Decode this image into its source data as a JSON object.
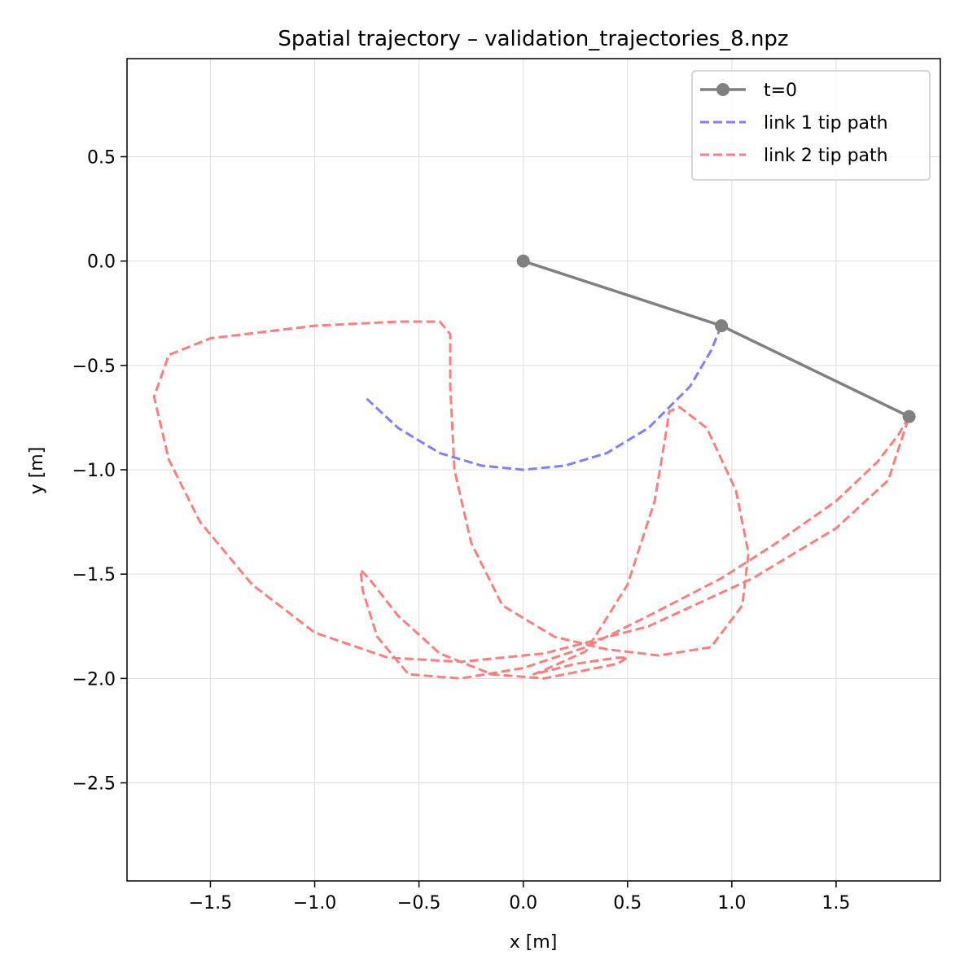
{
  "chart_data": {
    "type": "line",
    "title": "Spatial trajectory – validation_trajectories_8.npz",
    "xlabel": "x [m]",
    "ylabel": "y [m]",
    "xlim": [
      -1.9,
      2.0
    ],
    "ylim": [
      -2.97,
      0.97
    ],
    "xticks": [
      -1.5,
      -1.0,
      -0.5,
      0.0,
      0.5,
      1.0,
      1.5
    ],
    "xtick_labels": [
      "−1.5",
      "−1.0",
      "−0.5",
      "0.0",
      "0.5",
      "1.0",
      "1.5"
    ],
    "yticks": [
      0.5,
      0.0,
      -0.5,
      -1.0,
      -1.5,
      -2.0,
      -2.5
    ],
    "ytick_labels": [
      "0.5",
      "0.0",
      "−0.5",
      "−1.0",
      "−1.5",
      "−2.0",
      "−2.5"
    ],
    "grid": true,
    "legend_position": "top-right",
    "series": [
      {
        "name": "t=0",
        "style": "solid-markers",
        "color": "#808080",
        "points": [
          [
            0.0,
            0.0
          ],
          [
            0.95,
            -0.31
          ],
          [
            1.85,
            -0.745
          ]
        ]
      },
      {
        "name": "link 1 tip path",
        "style": "dashed",
        "color": "#7f7fff",
        "points": [
          [
            0.95,
            -0.31
          ],
          [
            0.9,
            -0.43
          ],
          [
            0.8,
            -0.6
          ],
          [
            0.6,
            -0.8
          ],
          [
            0.4,
            -0.92
          ],
          [
            0.2,
            -0.98
          ],
          [
            0.0,
            -1.0
          ],
          [
            -0.2,
            -0.98
          ],
          [
            -0.4,
            -0.92
          ],
          [
            -0.6,
            -0.8
          ],
          [
            -0.75,
            -0.66
          ]
        ]
      },
      {
        "name": "link 2 tip path",
        "style": "dashed",
        "color": "#ff7f7f",
        "points": [
          [
            1.85,
            -0.745
          ],
          [
            1.8,
            -0.83
          ],
          [
            1.7,
            -0.96
          ],
          [
            1.5,
            -1.15
          ],
          [
            1.2,
            -1.36
          ],
          [
            0.95,
            -1.52
          ],
          [
            0.6,
            -1.7
          ],
          [
            0.3,
            -1.85
          ],
          [
            0.0,
            -1.95
          ],
          [
            -0.3,
            -2.0
          ],
          [
            -0.55,
            -1.98
          ],
          [
            -0.7,
            -1.8
          ],
          [
            -0.77,
            -1.58
          ],
          [
            -0.78,
            -1.48
          ],
          [
            -0.74,
            -1.52
          ],
          [
            -0.6,
            -1.7
          ],
          [
            -0.4,
            -1.88
          ],
          [
            -0.15,
            -1.98
          ],
          [
            0.1,
            -2.0
          ],
          [
            0.3,
            -1.96
          ],
          [
            0.45,
            -1.93
          ],
          [
            0.5,
            -1.9
          ],
          [
            0.45,
            -1.9
          ],
          [
            0.25,
            -1.93
          ],
          [
            0.05,
            -1.98
          ],
          [
            0.1,
            -1.96
          ],
          [
            0.3,
            -1.87
          ],
          [
            0.5,
            -1.55
          ],
          [
            0.63,
            -1.15
          ],
          [
            0.68,
            -0.85
          ],
          [
            0.7,
            -0.72
          ],
          [
            0.75,
            -0.7
          ],
          [
            0.88,
            -0.8
          ],
          [
            1.02,
            -1.1
          ],
          [
            1.08,
            -1.4
          ],
          [
            1.05,
            -1.65
          ],
          [
            0.9,
            -1.85
          ],
          [
            0.65,
            -1.89
          ],
          [
            0.4,
            -1.86
          ],
          [
            0.15,
            -1.8
          ],
          [
            -0.1,
            -1.65
          ],
          [
            -0.25,
            -1.35
          ],
          [
            -0.33,
            -1.0
          ],
          [
            -0.35,
            -0.6
          ],
          [
            -0.35,
            -0.35
          ],
          [
            -0.4,
            -0.29
          ],
          [
            -0.6,
            -0.29
          ],
          [
            -1.0,
            -0.31
          ],
          [
            -1.5,
            -0.37
          ],
          [
            -1.7,
            -0.45
          ],
          [
            -1.77,
            -0.65
          ],
          [
            -1.7,
            -0.95
          ],
          [
            -1.55,
            -1.25
          ],
          [
            -1.3,
            -1.55
          ],
          [
            -1.0,
            -1.78
          ],
          [
            -0.65,
            -1.9
          ],
          [
            -0.3,
            -1.92
          ],
          [
            0.1,
            -1.88
          ],
          [
            0.6,
            -1.75
          ],
          [
            1.1,
            -1.52
          ],
          [
            1.5,
            -1.28
          ],
          [
            1.75,
            -1.05
          ],
          [
            1.85,
            -0.745
          ]
        ]
      }
    ]
  }
}
